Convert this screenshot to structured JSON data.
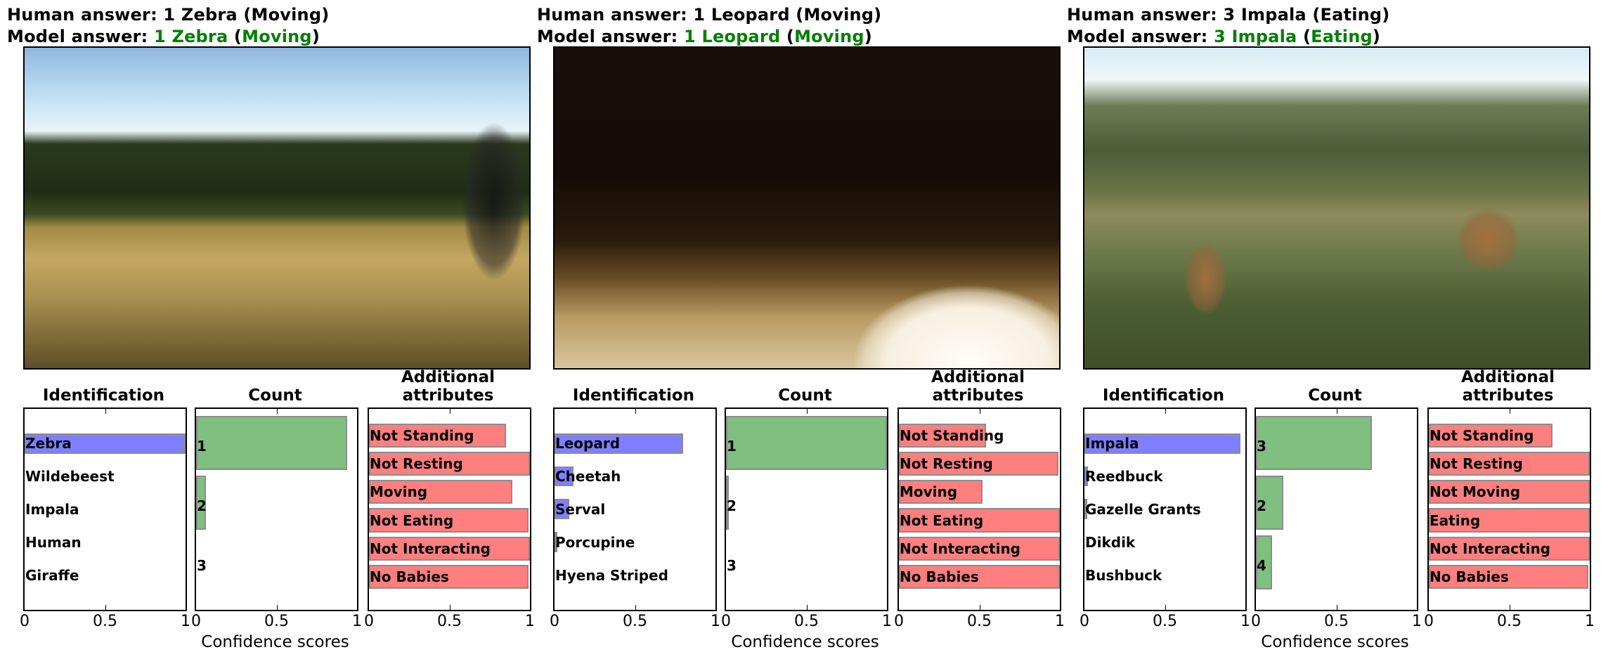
{
  "figure": {
    "panel_titles": {
      "identification": "Identification",
      "count": "Count",
      "attributes_line1": "Additional",
      "attributes_line2": "attributes"
    },
    "x_tick_labels": [
      "0",
      "0.5",
      "1"
    ],
    "x_axis_label": "Confidence scores",
    "colors": {
      "identification_bar": "#7f7fff",
      "count_bar": "#7fbf7f",
      "attribute_bar": "#ff7f7f",
      "correct_answer_text": "#008000",
      "bar_edge": "#8c8c8c"
    }
  },
  "examples": [
    {
      "human_prefix": "Human answer: ",
      "human_answer": "1 Zebra (Moving)",
      "model_prefix": "Model  answer: ",
      "model_species": "1 Zebra",
      "model_open": " (",
      "model_behavior": "Moving",
      "model_close": ")",
      "photo": "zebra-camera-trap-photo",
      "identification": [
        {
          "label": "Zebra",
          "value": 1.0
        },
        {
          "label": "Wildebeest",
          "value": 0.0
        },
        {
          "label": "Impala",
          "value": 0.0
        },
        {
          "label": "Human",
          "value": 0.0
        },
        {
          "label": "Giraffe",
          "value": 0.0
        }
      ],
      "count": [
        {
          "label": "1",
          "value": 0.94
        },
        {
          "label": "2",
          "value": 0.06
        },
        {
          "label": "3",
          "value": 0.0
        }
      ],
      "attributes": [
        {
          "label": "Not Standing",
          "value": 0.85
        },
        {
          "label": "Not Resting",
          "value": 1.0
        },
        {
          "label": "Moving",
          "value": 0.89
        },
        {
          "label": "Not Eating",
          "value": 0.99
        },
        {
          "label": "Not Interacting",
          "value": 1.0
        },
        {
          "label": "No Babies",
          "value": 0.99
        }
      ]
    },
    {
      "human_prefix": "Human answer: ",
      "human_answer": "1 Leopard (Moving)",
      "model_prefix": "Model  answer: ",
      "model_species": "1 Leopard",
      "model_open": " (",
      "model_behavior": "Moving",
      "model_close": ")",
      "photo": "leopard-night-camera-trap-photo",
      "identification": [
        {
          "label": "Leopard",
          "value": 0.8
        },
        {
          "label": "Cheetah",
          "value": 0.12
        },
        {
          "label": "Serval",
          "value": 0.09
        },
        {
          "label": "Porcupine",
          "value": 0.005
        },
        {
          "label": "Hyena Striped",
          "value": 0.0
        }
      ],
      "count": [
        {
          "label": "1",
          "value": 1.0
        },
        {
          "label": "2",
          "value": 0.01
        },
        {
          "label": "3",
          "value": 0.0
        }
      ],
      "attributes": [
        {
          "label": "Not Standing",
          "value": 0.54
        },
        {
          "label": "Not Resting",
          "value": 0.99
        },
        {
          "label": "Moving",
          "value": 0.52
        },
        {
          "label": "Not Eating",
          "value": 1.0
        },
        {
          "label": "Not Interacting",
          "value": 1.0
        },
        {
          "label": "No Babies",
          "value": 1.0
        }
      ]
    },
    {
      "human_prefix": "Human answer: ",
      "human_answer": "3 Impala (Eating)",
      "model_prefix": "Model  answer: ",
      "model_species": "3 Impala",
      "model_open": " (",
      "model_behavior": "Eating",
      "model_close": ")",
      "photo": "impala-grazing-camera-trap-photo",
      "identification": [
        {
          "label": "Impala",
          "value": 0.97
        },
        {
          "label": "Reedbuck",
          "value": 0.02
        },
        {
          "label": "Gazelle Grants",
          "value": 0.005
        },
        {
          "label": "Dikdik",
          "value": 0.0
        },
        {
          "label": "Bushbuck",
          "value": 0.0
        }
      ],
      "count": [
        {
          "label": "3",
          "value": 0.72
        },
        {
          "label": "2",
          "value": 0.17
        },
        {
          "label": "4",
          "value": 0.1
        }
      ],
      "attributes": [
        {
          "label": "Not Standing",
          "value": 0.77
        },
        {
          "label": "Not Resting",
          "value": 1.0
        },
        {
          "label": "Not Moving",
          "value": 1.0
        },
        {
          "label": "Eating",
          "value": 1.0
        },
        {
          "label": "Not Interacting",
          "value": 1.0
        },
        {
          "label": "No Babies",
          "value": 0.99
        }
      ]
    }
  ],
  "chart_data": [
    {
      "type": "bar",
      "orientation": "horizontal",
      "title": "Identification",
      "example": 1,
      "categories": [
        "Zebra",
        "Wildebeest",
        "Impala",
        "Human",
        "Giraffe"
      ],
      "values": [
        1.0,
        0.0,
        0.0,
        0.0,
        0.0
      ],
      "xlabel": "",
      "xlim": [
        0,
        1
      ]
    },
    {
      "type": "bar",
      "orientation": "horizontal",
      "title": "Count",
      "example": 1,
      "categories": [
        "1",
        "2",
        "3"
      ],
      "values": [
        0.94,
        0.06,
        0.0
      ],
      "xlabel": "Confidence scores",
      "xlim": [
        0,
        1
      ]
    },
    {
      "type": "bar",
      "orientation": "horizontal",
      "title": "Additional attributes",
      "example": 1,
      "categories": [
        "Not Standing",
        "Not Resting",
        "Moving",
        "Not Eating",
        "Not Interacting",
        "No Babies"
      ],
      "values": [
        0.85,
        1.0,
        0.89,
        0.99,
        1.0,
        0.99
      ],
      "xlim": [
        0,
        1
      ]
    },
    {
      "type": "bar",
      "orientation": "horizontal",
      "title": "Identification",
      "example": 2,
      "categories": [
        "Leopard",
        "Cheetah",
        "Serval",
        "Porcupine",
        "Hyena Striped"
      ],
      "values": [
        0.8,
        0.12,
        0.09,
        0.005,
        0.0
      ],
      "xlim": [
        0,
        1
      ]
    },
    {
      "type": "bar",
      "orientation": "horizontal",
      "title": "Count",
      "example": 2,
      "categories": [
        "1",
        "2",
        "3"
      ],
      "values": [
        1.0,
        0.01,
        0.0
      ],
      "xlabel": "Confidence scores",
      "xlim": [
        0,
        1
      ]
    },
    {
      "type": "bar",
      "orientation": "horizontal",
      "title": "Additional attributes",
      "example": 2,
      "categories": [
        "Not Standing",
        "Not Resting",
        "Moving",
        "Not Eating",
        "Not Interacting",
        "No Babies"
      ],
      "values": [
        0.54,
        0.99,
        0.52,
        1.0,
        1.0,
        1.0
      ],
      "xlim": [
        0,
        1
      ]
    },
    {
      "type": "bar",
      "orientation": "horizontal",
      "title": "Identification",
      "example": 3,
      "categories": [
        "Impala",
        "Reedbuck",
        "Gazelle Grants",
        "Dikdik",
        "Bushbuck"
      ],
      "values": [
        0.97,
        0.02,
        0.005,
        0.0,
        0.0
      ],
      "xlim": [
        0,
        1
      ]
    },
    {
      "type": "bar",
      "orientation": "horizontal",
      "title": "Count",
      "example": 3,
      "categories": [
        "3",
        "2",
        "4"
      ],
      "values": [
        0.72,
        0.17,
        0.1
      ],
      "xlabel": "Confidence scores",
      "xlim": [
        0,
        1
      ]
    },
    {
      "type": "bar",
      "orientation": "horizontal",
      "title": "Additional attributes",
      "example": 3,
      "categories": [
        "Not Standing",
        "Not Resting",
        "Not Moving",
        "Eating",
        "Not Interacting",
        "No Babies"
      ],
      "values": [
        0.77,
        1.0,
        1.0,
        1.0,
        1.0,
        0.99
      ],
      "xlim": [
        0,
        1
      ]
    }
  ]
}
